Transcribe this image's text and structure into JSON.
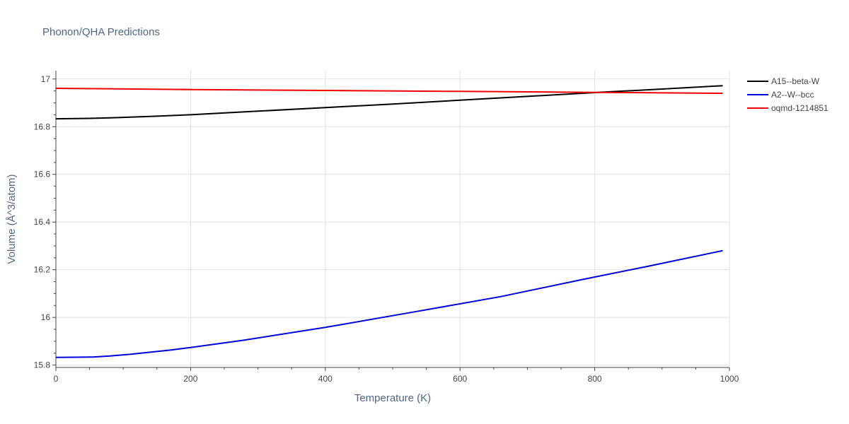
{
  "chart_data": {
    "type": "line",
    "title": "Phonon/QHA Predictions",
    "xlabel": "Temperature (K)",
    "ylabel": "Volume (Å^3/atom)",
    "xlim": [
      0,
      1000
    ],
    "ylim": [
      15.79,
      17.035
    ],
    "xticks": [
      0,
      200,
      400,
      600,
      800,
      1000
    ],
    "xtick_labels": [
      "0",
      "200",
      "400",
      "600",
      "800",
      "1000"
    ],
    "yticks": [
      15.8,
      16.0,
      16.2,
      16.4,
      16.6,
      16.8,
      17.0
    ],
    "ytick_labels": [
      "15.8",
      "16",
      "16.2",
      "16.4",
      "16.6",
      "16.8",
      "17"
    ],
    "grid": true,
    "legend_position": "top-right",
    "series": [
      {
        "name": "A15--beta-W",
        "color": "#000000",
        "x": [
          0,
          50,
          80,
          100,
          150,
          200,
          300,
          400,
          500,
          600,
          700,
          800,
          900,
          990
        ],
        "y": [
          16.833,
          16.835,
          16.837,
          16.839,
          16.844,
          16.85,
          16.865,
          16.88,
          16.895,
          16.911,
          16.927,
          16.943,
          16.958,
          16.972
        ]
      },
      {
        "name": "A2--W--bcc",
        "color": "#0000dd",
        "x": [
          0,
          30,
          55,
          80,
          110,
          170,
          200,
          280,
          400,
          530,
          660,
          780,
          880,
          990
        ],
        "y": [
          15.832,
          15.833,
          15.834,
          15.838,
          15.845,
          15.863,
          15.874,
          15.905,
          15.958,
          16.022,
          16.087,
          16.158,
          16.215,
          16.28
        ]
      },
      {
        "name": "oqmd-1214851",
        "color": "#ee0000",
        "x": [
          0,
          200,
          400,
          600,
          800,
          990
        ],
        "y": [
          16.961,
          16.956,
          16.952,
          16.948,
          16.944,
          16.94
        ]
      }
    ]
  }
}
